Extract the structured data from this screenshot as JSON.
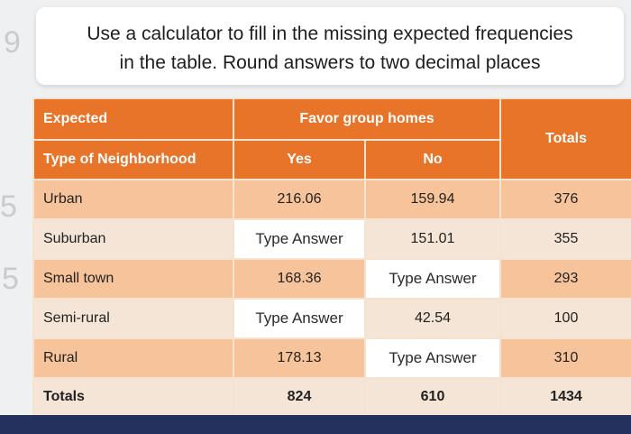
{
  "prompt": {
    "line1": "Use a calculator to fill in the missing expected frequencies",
    "line2": "in the table. Round answers to two decimal places"
  },
  "table": {
    "corner_label": "Expected",
    "group_header": "Favor group homes",
    "row_header_label": "Type of Neighborhood",
    "columns": [
      "Yes",
      "No",
      "Totals"
    ],
    "rows": [
      {
        "label": "Urban",
        "yes": "216.06",
        "no": "159.94",
        "total": "376"
      },
      {
        "label": "Suburban",
        "yes": "Type Answer",
        "no": "151.01",
        "total": "355"
      },
      {
        "label": "Small town",
        "yes": "168.36",
        "no": "Type Answer",
        "total": "293"
      },
      {
        "label": "Semi-rural",
        "yes": "Type Answer",
        "no": "42.54",
        "total": "100"
      },
      {
        "label": "Rural",
        "yes": "178.13",
        "no": "Type Answer",
        "total": "310"
      }
    ],
    "totals_row": {
      "label": "Totals",
      "yes": "824",
      "no": "610",
      "total": "1434"
    }
  },
  "colors": {
    "header_orange": "#e8742a",
    "row_peach": "#f6c39a",
    "row_light": "#f4e5d6",
    "input_white": "#ffffff"
  }
}
